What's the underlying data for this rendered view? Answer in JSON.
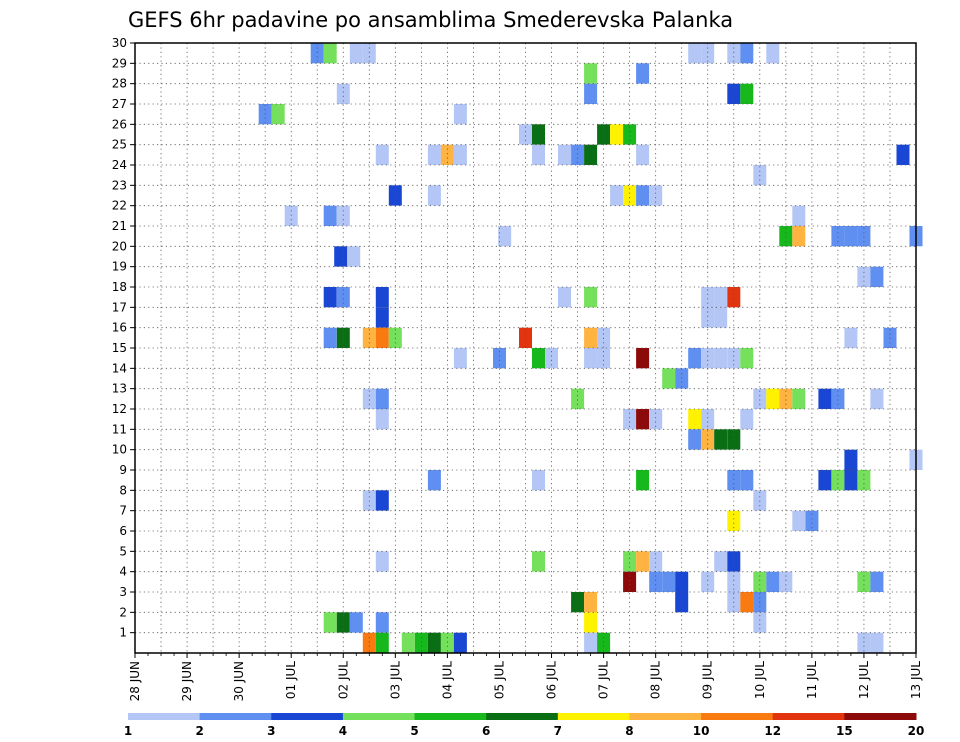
{
  "chart_data": {
    "type": "heatmap",
    "title": "GEFS 6hr padavine po ansamblima Smederevska Palanka",
    "xlabel": "",
    "ylabel": "",
    "x_tick_labels": [
      "28 JUN",
      "29 JUN",
      "30 JUN",
      "01 JUL",
      "02 JUL",
      "03 JUL",
      "04 JUL",
      "05 JUL",
      "06 JUL",
      "07 JUL",
      "08 JUL",
      "09 JUL",
      "10 JUL",
      "11 JUL",
      "12 JUL",
      "13 JUL"
    ],
    "xlim_days": [
      0,
      15
    ],
    "y_tick_labels": [
      "1",
      "2",
      "3",
      "4",
      "5",
      "6",
      "7",
      "8",
      "9",
      "10",
      "11",
      "12",
      "13",
      "14",
      "15",
      "16",
      "17",
      "18",
      "19",
      "20",
      "21",
      "22",
      "23",
      "24",
      "25",
      "26",
      "27",
      "28",
      "29",
      "30"
    ],
    "ylim": [
      0,
      30
    ],
    "grid": true,
    "colorbar": {
      "placement": "bottom",
      "labels": [
        "1",
        "2",
        "3",
        "4",
        "5",
        "6",
        "7",
        "8",
        "10",
        "12",
        "15",
        "20"
      ],
      "colors": [
        "#b3c6f5",
        "#5f8ff0",
        "#1a46d4",
        "#74e05c",
        "#16b81c",
        "#0a6e14",
        "#fff200",
        "#ffb341",
        "#f87a10",
        "#e2340f",
        "#8c0a0a"
      ]
    },
    "cell_width_days": 0.25,
    "cells": [
      [
        3.5,
        30,
        1
      ],
      [
        3.75,
        30,
        3
      ],
      [
        4.25,
        30,
        0
      ],
      [
        4.5,
        30,
        0
      ],
      [
        10.75,
        30,
        0
      ],
      [
        11,
        30,
        0
      ],
      [
        11.5,
        30,
        0
      ],
      [
        11.75,
        30,
        1
      ],
      [
        12.25,
        30,
        0
      ],
      [
        8.75,
        29,
        3
      ],
      [
        9.75,
        29,
        1
      ],
      [
        4,
        28,
        0
      ],
      [
        8.75,
        28,
        1
      ],
      [
        11.5,
        28,
        2
      ],
      [
        11.75,
        28,
        4
      ],
      [
        2.5,
        27,
        1
      ],
      [
        2.75,
        27,
        3
      ],
      [
        6.25,
        27,
        0
      ],
      [
        7.5,
        26,
        0
      ],
      [
        7.75,
        26,
        5
      ],
      [
        9,
        26,
        5
      ],
      [
        9.25,
        26,
        6
      ],
      [
        9.5,
        26,
        4
      ],
      [
        4.75,
        25,
        0
      ],
      [
        5.75,
        25,
        0
      ],
      [
        6,
        25,
        7
      ],
      [
        6.25,
        25,
        0
      ],
      [
        7.75,
        25,
        0
      ],
      [
        8.25,
        25,
        0
      ],
      [
        8.5,
        25,
        1
      ],
      [
        8.75,
        25,
        5
      ],
      [
        9.75,
        25,
        0
      ],
      [
        14.75,
        25,
        2
      ],
      [
        12,
        24,
        0
      ],
      [
        5,
        23,
        2
      ],
      [
        5.75,
        23,
        0
      ],
      [
        9.25,
        23,
        0
      ],
      [
        9.5,
        23,
        6
      ],
      [
        9.75,
        23,
        1
      ],
      [
        10,
        23,
        0
      ],
      [
        3,
        22,
        0
      ],
      [
        3.75,
        22,
        1
      ],
      [
        4,
        22,
        0
      ],
      [
        12.75,
        22,
        0
      ],
      [
        7.1,
        21,
        0
      ],
      [
        12.5,
        21,
        4
      ],
      [
        12.75,
        21,
        7
      ],
      [
        13.5,
        21,
        1
      ],
      [
        13.75,
        21,
        1
      ],
      [
        14,
        21,
        1
      ],
      [
        15,
        21,
        1
      ],
      [
        3.95,
        20,
        2
      ],
      [
        4.2,
        20,
        0
      ],
      [
        14,
        19,
        0
      ],
      [
        14.25,
        19,
        1
      ],
      [
        3.75,
        18,
        2
      ],
      [
        4,
        18,
        1
      ],
      [
        4.75,
        18,
        2
      ],
      [
        8.25,
        18,
        0
      ],
      [
        8.75,
        18,
        3
      ],
      [
        11,
        18,
        0
      ],
      [
        11.25,
        18,
        0
      ],
      [
        11.5,
        18,
        9
      ],
      [
        4.75,
        17,
        2
      ],
      [
        11,
        17,
        0
      ],
      [
        11.25,
        17,
        0
      ],
      [
        3.75,
        16,
        1
      ],
      [
        4,
        16,
        5
      ],
      [
        4.5,
        16,
        7
      ],
      [
        4.75,
        16,
        8
      ],
      [
        5,
        16,
        3
      ],
      [
        7.5,
        16,
        9
      ],
      [
        8.75,
        16,
        7
      ],
      [
        9,
        16,
        0
      ],
      [
        13.75,
        16,
        0
      ],
      [
        14.5,
        16,
        1
      ],
      [
        6.25,
        15,
        0
      ],
      [
        7,
        15,
        1
      ],
      [
        7.75,
        15,
        4
      ],
      [
        8,
        15,
        0
      ],
      [
        8.75,
        15,
        0
      ],
      [
        9,
        15,
        0
      ],
      [
        9.75,
        15,
        10
      ],
      [
        10.75,
        15,
        1
      ],
      [
        11,
        15,
        0
      ],
      [
        11.25,
        15,
        0
      ],
      [
        11.5,
        15,
        0
      ],
      [
        11.75,
        15,
        3
      ],
      [
        10.25,
        14,
        3
      ],
      [
        10.5,
        14,
        1
      ],
      [
        4.5,
        13,
        0
      ],
      [
        4.75,
        13,
        1
      ],
      [
        8.5,
        13,
        3
      ],
      [
        12,
        13,
        0
      ],
      [
        12.25,
        13,
        6
      ],
      [
        12.5,
        13,
        7
      ],
      [
        12.75,
        13,
        3
      ],
      [
        13.25,
        13,
        2
      ],
      [
        13.5,
        13,
        1
      ],
      [
        14.25,
        13,
        0
      ],
      [
        4.75,
        12,
        0
      ],
      [
        9.5,
        12,
        0
      ],
      [
        9.75,
        12,
        10
      ],
      [
        10,
        12,
        0
      ],
      [
        10.75,
        12,
        6
      ],
      [
        11,
        12,
        0
      ],
      [
        11.75,
        12,
        0
      ],
      [
        10.75,
        11,
        1
      ],
      [
        11,
        11,
        7
      ],
      [
        11.25,
        11,
        5
      ],
      [
        11.5,
        11,
        5
      ],
      [
        13.75,
        10,
        2
      ],
      [
        15,
        10,
        0
      ],
      [
        5.75,
        9,
        1
      ],
      [
        7.75,
        9,
        0
      ],
      [
        9.75,
        9,
        4
      ],
      [
        11.5,
        9,
        1
      ],
      [
        11.75,
        9,
        1
      ],
      [
        13.25,
        9,
        2
      ],
      [
        13.5,
        9,
        3
      ],
      [
        13.75,
        9,
        2
      ],
      [
        14,
        9,
        3
      ],
      [
        4.5,
        8,
        0
      ],
      [
        4.75,
        8,
        2
      ],
      [
        12,
        8,
        0
      ],
      [
        11.5,
        7,
        6
      ],
      [
        12.75,
        7,
        0
      ],
      [
        13,
        7,
        1
      ],
      [
        4.75,
        5,
        0
      ],
      [
        7.75,
        5,
        3
      ],
      [
        9.5,
        5,
        3
      ],
      [
        9.75,
        5,
        7
      ],
      [
        10,
        5,
        0
      ],
      [
        11.25,
        5,
        0
      ],
      [
        11.5,
        5,
        2
      ],
      [
        9.5,
        4,
        10
      ],
      [
        10,
        4,
        1
      ],
      [
        10.25,
        4,
        1
      ],
      [
        10.5,
        4,
        2
      ],
      [
        11,
        4,
        0
      ],
      [
        11.5,
        4,
        0
      ],
      [
        12,
        4,
        3
      ],
      [
        12.25,
        4,
        1
      ],
      [
        12.5,
        4,
        0
      ],
      [
        14,
        4,
        3
      ],
      [
        14.25,
        4,
        1
      ],
      [
        8.5,
        3,
        5
      ],
      [
        8.75,
        3,
        7
      ],
      [
        10.5,
        3,
        2
      ],
      [
        11.5,
        3,
        0
      ],
      [
        11.75,
        3,
        8
      ],
      [
        12,
        3,
        1
      ],
      [
        3.75,
        2,
        3
      ],
      [
        4,
        2,
        5
      ],
      [
        4.25,
        2,
        1
      ],
      [
        4.75,
        2,
        1
      ],
      [
        8.75,
        2,
        6
      ],
      [
        12,
        2,
        0
      ],
      [
        4.5,
        1,
        8
      ],
      [
        4.75,
        1,
        4
      ],
      [
        5.25,
        1,
        3
      ],
      [
        5.5,
        1,
        4
      ],
      [
        5.75,
        1,
        5
      ],
      [
        6,
        1,
        3
      ],
      [
        6.25,
        1,
        2
      ],
      [
        8.75,
        1,
        0
      ],
      [
        9,
        1,
        4
      ],
      [
        14,
        1,
        0
      ],
      [
        14.25,
        1,
        0
      ]
    ]
  }
}
